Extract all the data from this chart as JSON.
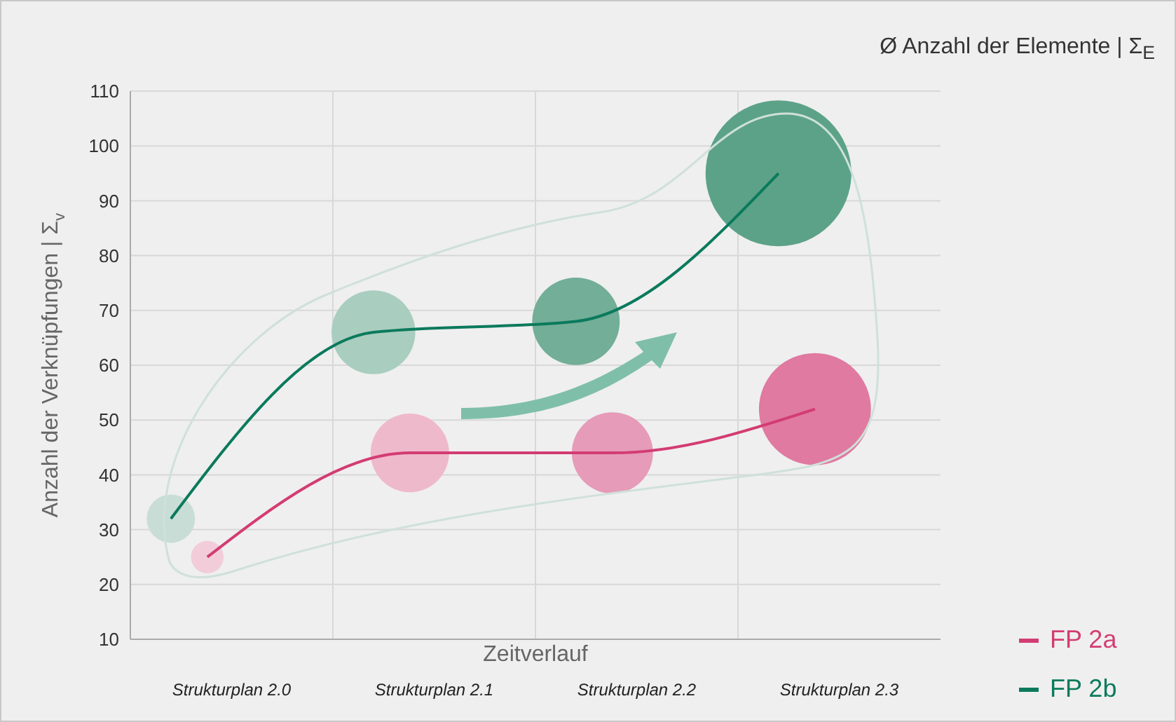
{
  "chart_data": {
    "type": "bubble",
    "xlabel": "Zeitverlauf",
    "ylabel": "Anzahl der Verknüpfungen | Σ$_{v}$",
    "annotations": [
      "Ø Anzahl der Elemente | Σ$_{E}$"
    ],
    "categories": [
      "Strukturplan 2.0",
      "Strukturplan 2.1",
      "Strukturplan 2.2",
      "Strukturplan 2.3"
    ],
    "series": [
      {
        "color": "#e07aa0",
        "values": [
          25,
          44,
          44,
          52
        ],
        "sizes": [
          0.05,
          0.29,
          0.31,
          0.59
        ],
        "colors": [
          "#f2cdd9",
          "#efb9cc",
          "#e69bb8",
          "#e07aa0"
        ]
      },
      {
        "color": "#5ca288",
        "values": [
          32,
          66,
          68,
          95
        ],
        "sizes": [
          0.11,
          0.33,
          0.36,
          1
        ],
        "colors": [
          "#c9ddd7",
          "#a9cdbf",
          "#72ae98",
          "#5ca288"
        ]
      },
      {
        "type": "line",
        "name": "FP 2a",
        "color": "#d33c72",
        "values": [
          25,
          44,
          44,
          52
        ]
      },
      {
        "type": "line",
        "name": "FP 2b",
        "color": "#0b7a5c",
        "values": [
          32,
          66,
          68,
          95
        ]
      }
    ],
    "ylim": [
      10,
      110
    ],
    "yticks": [
      10,
      20,
      30,
      40,
      50,
      60,
      70,
      80,
      90,
      100,
      110
    ],
    "grid": true,
    "legend": "bottom right",
    "line_style": "solid"
  }
}
